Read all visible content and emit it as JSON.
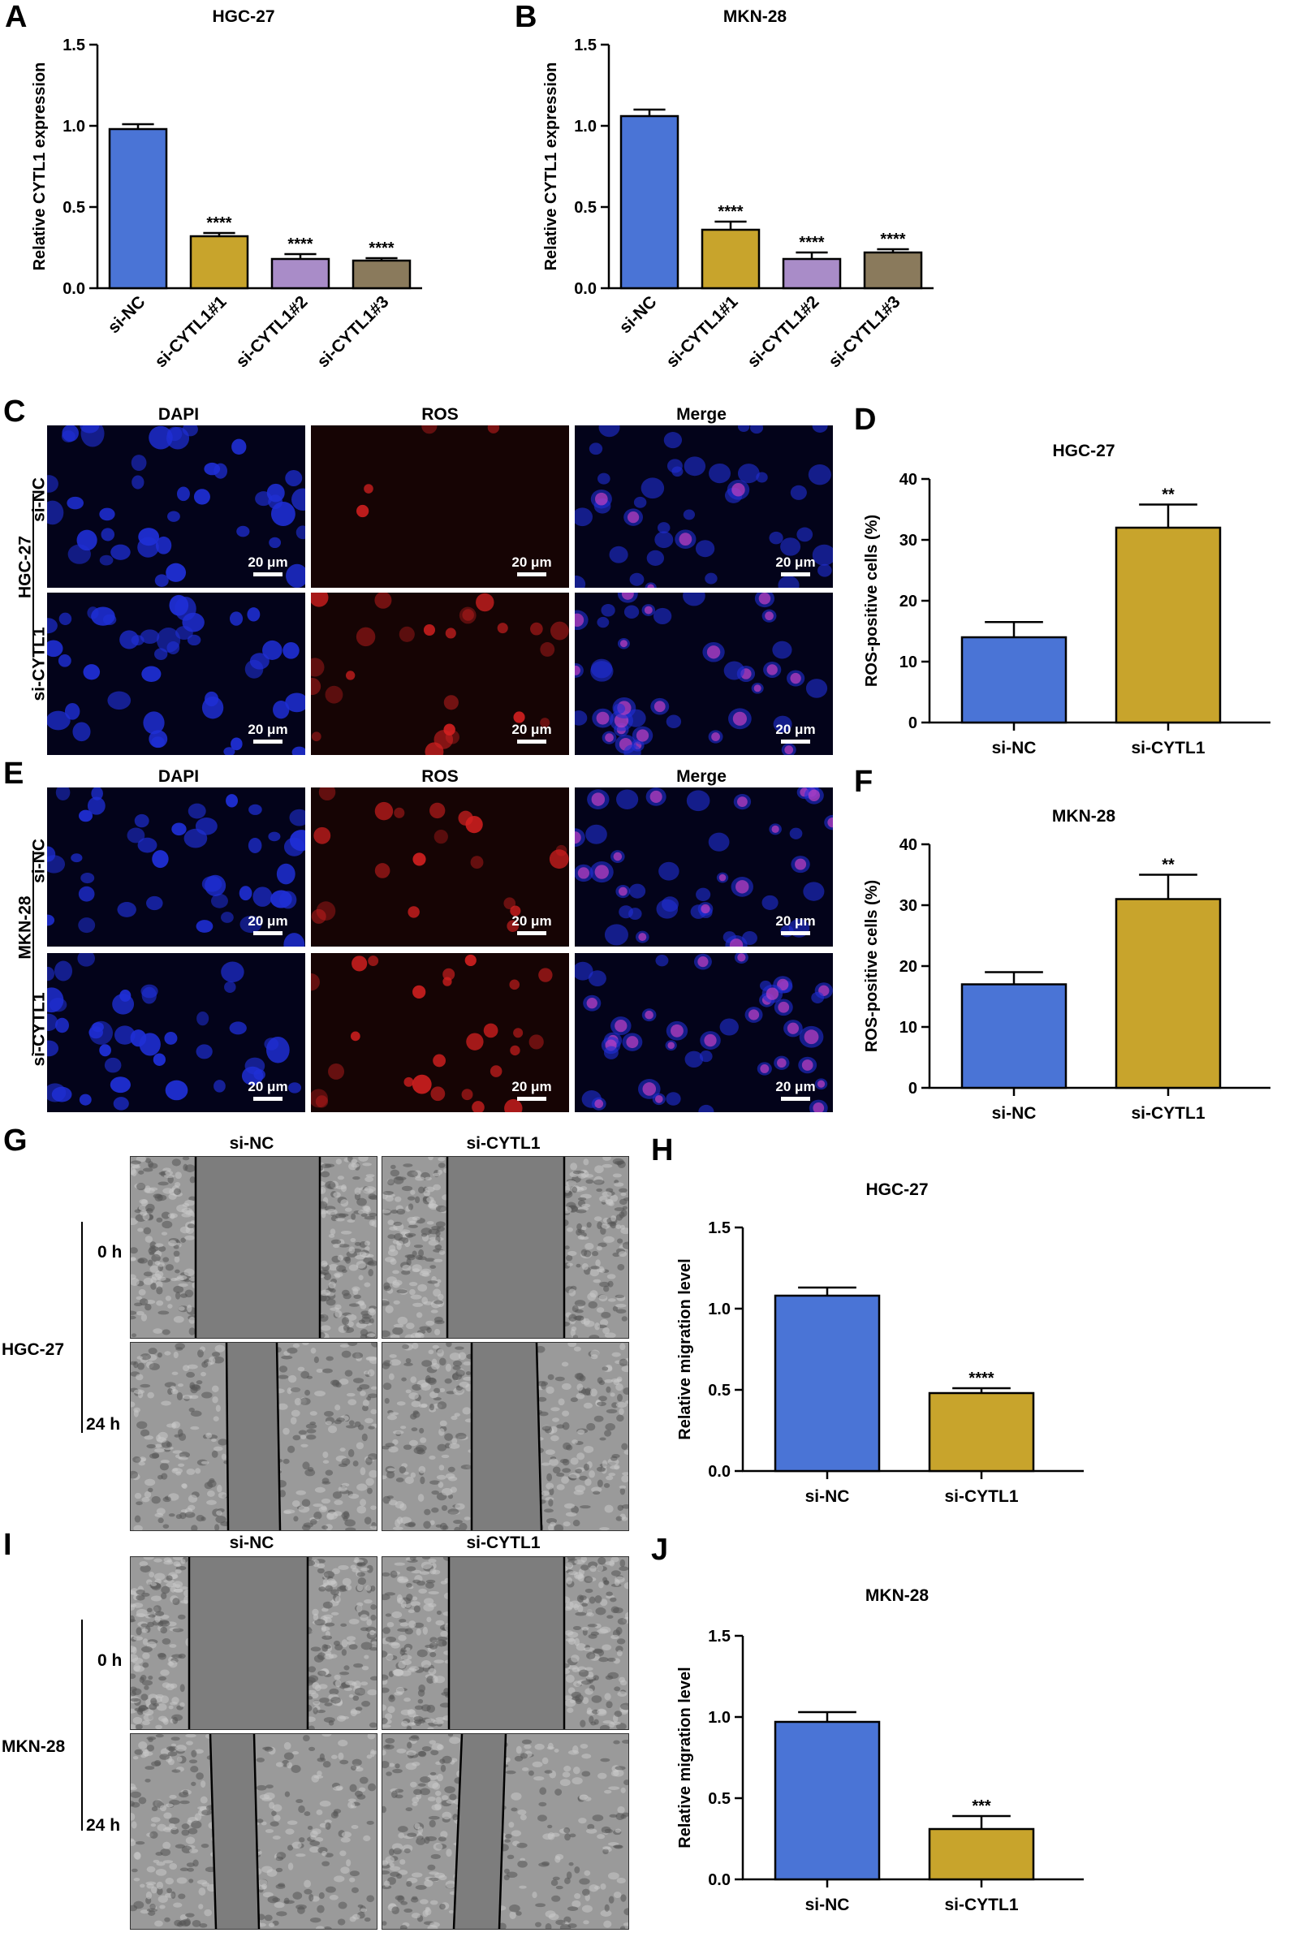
{
  "panels": {
    "A": "A",
    "B": "B",
    "C": "C",
    "D": "D",
    "E": "E",
    "F": "F",
    "G": "G",
    "H": "H",
    "I": "I",
    "J": "J"
  },
  "colors": {
    "si_nc": "#4a74d6",
    "si_cytl1": "#c8a42c",
    "si_cytl1_2": "#a98cc8",
    "si_cytl1_3": "#8a7a5c",
    "dapi": "#1f2fd6",
    "ros": "#d42020",
    "merge": "#c040c0"
  },
  "chart_data": [
    {
      "id": "A",
      "type": "bar",
      "title": "HGC-27",
      "ylabel": "Relative CYTL1 expression",
      "ylim": [
        0,
        1.5
      ],
      "yticks": [
        "0.0",
        "0.5",
        "1.0",
        "1.5"
      ],
      "categories": [
        "si-NC",
        "si-CYTL1#1",
        "si-CYTL1#2",
        "si-CYTL1#3"
      ],
      "values": [
        0.98,
        0.32,
        0.18,
        0.17
      ],
      "errors": [
        0.03,
        0.02,
        0.03,
        0.015
      ],
      "significance": [
        "",
        "****",
        "****",
        "****"
      ],
      "colors": [
        "#4a74d6",
        "#c8a42c",
        "#a98cc8",
        "#8a7a5c"
      ],
      "rotate_labels": true
    },
    {
      "id": "B",
      "type": "bar",
      "title": "MKN-28",
      "ylabel": "Relative CYTL1 expression",
      "ylim": [
        0,
        1.5
      ],
      "yticks": [
        "0.0",
        "0.5",
        "1.0",
        "1.5"
      ],
      "categories": [
        "si-NC",
        "si-CYTL1#1",
        "si-CYTL1#2",
        "si-CYTL1#3"
      ],
      "values": [
        1.06,
        0.36,
        0.18,
        0.22
      ],
      "errors": [
        0.04,
        0.05,
        0.04,
        0.02
      ],
      "significance": [
        "",
        "****",
        "****",
        "****"
      ],
      "colors": [
        "#4a74d6",
        "#c8a42c",
        "#a98cc8",
        "#8a7a5c"
      ],
      "rotate_labels": true
    },
    {
      "id": "D",
      "type": "bar",
      "title": "HGC-27",
      "ylabel": "ROS-positive cells (%)",
      "ylim": [
        0,
        40
      ],
      "yticks": [
        "0",
        "10",
        "20",
        "30",
        "40"
      ],
      "categories": [
        "si-NC",
        "si-CYTL1"
      ],
      "values": [
        14,
        32
      ],
      "errors": [
        2.5,
        3.8
      ],
      "significance": [
        "",
        "**"
      ],
      "colors": [
        "#4a74d6",
        "#c8a42c"
      ],
      "rotate_labels": false
    },
    {
      "id": "F",
      "type": "bar",
      "title": "MKN-28",
      "ylabel": "ROS-positive cells (%)",
      "ylim": [
        0,
        40
      ],
      "yticks": [
        "0",
        "10",
        "20",
        "30",
        "40"
      ],
      "categories": [
        "si-NC",
        "si-CYTL1"
      ],
      "values": [
        17,
        31
      ],
      "errors": [
        2.0,
        4.0
      ],
      "significance": [
        "",
        "**"
      ],
      "colors": [
        "#4a74d6",
        "#c8a42c"
      ],
      "rotate_labels": false
    },
    {
      "id": "H",
      "type": "bar",
      "title": "HGC-27",
      "ylabel": "Relative migration level",
      "ylim": [
        0,
        1.5
      ],
      "yticks": [
        "0.0",
        "0.5",
        "1.0",
        "1.5"
      ],
      "categories": [
        "si-NC",
        "si-CYTL1"
      ],
      "values": [
        1.08,
        0.48
      ],
      "errors": [
        0.05,
        0.03
      ],
      "significance": [
        "",
        "****"
      ],
      "colors": [
        "#4a74d6",
        "#c8a42c"
      ],
      "rotate_labels": false
    },
    {
      "id": "J",
      "type": "bar",
      "title": "MKN-28",
      "ylabel": "Relative migration level",
      "ylim": [
        0,
        1.5
      ],
      "yticks": [
        "0.0",
        "0.5",
        "1.0",
        "1.5"
      ],
      "categories": [
        "si-NC",
        "si-CYTL1"
      ],
      "values": [
        0.97,
        0.31
      ],
      "errors": [
        0.06,
        0.08
      ],
      "significance": [
        "",
        "***"
      ],
      "colors": [
        "#4a74d6",
        "#c8a42c"
      ],
      "rotate_labels": false
    }
  ],
  "micrographs": {
    "channels": [
      "DAPI",
      "ROS",
      "Merge"
    ],
    "scale_bar": "20 μm",
    "C": {
      "cell_line": "HGC-27",
      "rows": [
        "si-NC",
        "si-CYTL1"
      ]
    },
    "E": {
      "cell_line": "MKN-28",
      "rows": [
        "si-NC",
        "si-CYTL1"
      ]
    }
  },
  "wound_healing": {
    "G": {
      "cell_line": "HGC-27",
      "columns": [
        "si-NC",
        "si-CYTL1"
      ],
      "times": [
        "0 h",
        "24 h"
      ]
    },
    "I": {
      "cell_line": "MKN-28",
      "columns": [
        "si-NC",
        "si-CYTL1"
      ],
      "times": [
        "0 h",
        "24 h"
      ]
    }
  }
}
